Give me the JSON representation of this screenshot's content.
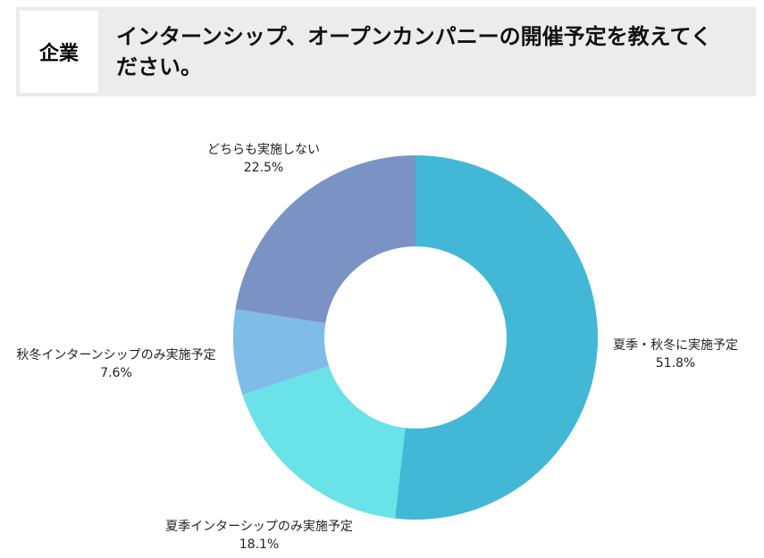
{
  "header": {
    "label": "企業"
  },
  "chart_data": {
    "type": "donut",
    "title": "インターンシップ、オープンカンパニーの開催予定を教えてください。",
    "categories": [
      "夏季・秋冬に実施予定",
      "夏季インターシップのみ実施予定",
      "秋冬インターンシップのみ実施予定",
      "どちらも実施しない"
    ],
    "values": [
      51.8,
      18.1,
      7.6,
      22.5
    ],
    "value_labels": [
      "51.8%",
      "18.1%",
      "7.6%",
      "22.5%"
    ],
    "colors": [
      "#42b8d6",
      "#6ae3e8",
      "#7fbce8",
      "#7b93c4"
    ]
  }
}
